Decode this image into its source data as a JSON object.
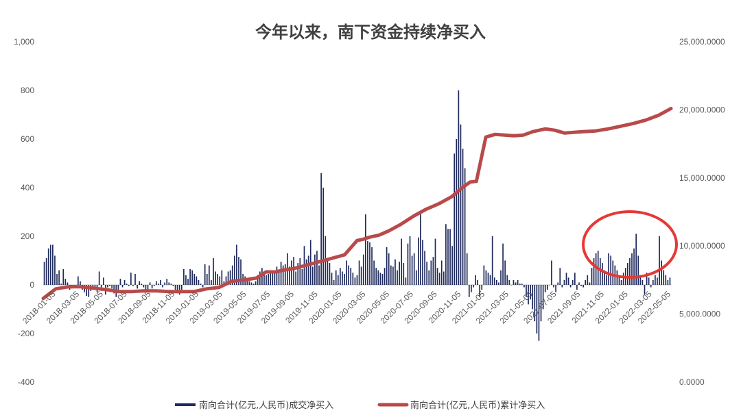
{
  "chart_data": {
    "type": "bar",
    "title": "今年以来，南下资金持续净买入",
    "left_axis": {
      "min": -400,
      "max": 1000,
      "ticks": [
        "1,000",
        "800",
        "600",
        "400",
        "200",
        "0",
        "-200",
        "-400"
      ]
    },
    "right_axis": {
      "min": 0,
      "max": 25000,
      "ticks": [
        "25,000.0000",
        "20,000.0000",
        "15,000.0000",
        "10,000.0000",
        "5,000.0000",
        "0.0000"
      ]
    },
    "x_tick_labels": [
      "2018-01-05",
      "2018-03-05",
      "2018-05-05",
      "2018-07-05",
      "2018-09-05",
      "2018-11-05",
      "2019-01-05",
      "2019-03-05",
      "2019-05-05",
      "2019-07-05",
      "2019-09-05",
      "2019-11-05",
      "2020-01-05",
      "2020-03-05",
      "2020-05-05",
      "2020-07-05",
      "2020-09-05",
      "2020-11-05",
      "2021-01-05",
      "2021-03-05",
      "2021-05-05",
      "2021-07-05",
      "2021-09-05",
      "2021-11-05",
      "2022-01-05",
      "2022-03-05",
      "2022-05-05"
    ],
    "series": [
      {
        "name": "南向合计(亿元,人民币)成交净买入",
        "kind": "bar",
        "axis": "left",
        "color": "#1f2a5c",
        "values": [
          95,
          110,
          150,
          165,
          165,
          120,
          45,
          60,
          5,
          65,
          25,
          10,
          -20,
          -15,
          -10,
          -5,
          35,
          15,
          -20,
          -30,
          -45,
          -50,
          -25,
          -10,
          -15,
          -30,
          55,
          -25,
          30,
          -40,
          -10,
          -5,
          -15,
          -35,
          -50,
          -20,
          25,
          -10,
          20,
          5,
          -5,
          50,
          -5,
          45,
          -15,
          15,
          5,
          -10,
          -20,
          -25,
          10,
          -15,
          -5,
          15,
          5,
          20,
          -10,
          10,
          25,
          10,
          5,
          -5,
          -20,
          -35,
          -40,
          -20,
          65,
          40,
          25,
          65,
          60,
          45,
          35,
          20,
          5,
          -10,
          85,
          45,
          80,
          20,
          110,
          55,
          45,
          35,
          60,
          15,
          35,
          55,
          60,
          80,
          120,
          165,
          115,
          105,
          45,
          35,
          25,
          15,
          10,
          5,
          15,
          40,
          55,
          70,
          50,
          40,
          45,
          60,
          50,
          55,
          75,
          60,
          95,
          80,
          85,
          130,
          75,
          100,
          115,
          55,
          90,
          110,
          65,
          160,
          105,
          120,
          185,
          75,
          125,
          140,
          80,
          460,
          400,
          200,
          110,
          90,
          50,
          20,
          60,
          40,
          70,
          55,
          45,
          100,
          80,
          70,
          50,
          30,
          40,
          100,
          75,
          125,
          290,
          180,
          175,
          155,
          100,
          70,
          60,
          50,
          45,
          70,
          155,
          130,
          80,
          75,
          105,
          60,
          95,
          190,
          90,
          30,
          170,
          200,
          120,
          130,
          60,
          195,
          290,
          185,
          140,
          95,
          60,
          100,
          115,
          190,
          70,
          50,
          100,
          55,
          250,
          230,
          230,
          160,
          540,
          600,
          800,
          660,
          560,
          480,
          130,
          -50,
          -30,
          -10,
          40,
          20,
          -50,
          -20,
          80,
          60,
          50,
          40,
          200,
          30,
          20,
          10,
          60,
          170,
          100,
          40,
          20,
          0,
          20,
          10,
          20,
          5,
          5,
          -10,
          -50,
          -80,
          -60,
          -100,
          -150,
          -200,
          -230,
          -150,
          -100,
          -30,
          -20,
          0,
          100,
          -10,
          -30,
          10,
          70,
          -10,
          20,
          50,
          30,
          -10,
          20,
          50,
          -20,
          10,
          -5,
          -10,
          20,
          40,
          10,
          70,
          110,
          130,
          140,
          110,
          90,
          60,
          40,
          130,
          120,
          100,
          80,
          60,
          40,
          20,
          50,
          70,
          90,
          110,
          130,
          150,
          210,
          120,
          40,
          20,
          -40,
          50,
          30,
          -10,
          20,
          40,
          30,
          200,
          100,
          60,
          40,
          20,
          30
        ]
      },
      {
        "name": "南向合计(亿元,人民币)累计净买入",
        "kind": "line",
        "axis": "right",
        "color": "#b94a4a",
        "x": [
          0,
          0.02,
          0.04,
          0.06,
          0.08,
          0.1,
          0.12,
          0.14,
          0.16,
          0.18,
          0.2,
          0.22,
          0.24,
          0.26,
          0.28,
          0.3,
          0.32,
          0.34,
          0.355,
          0.37,
          0.385,
          0.4,
          0.42,
          0.44,
          0.46,
          0.48,
          0.5,
          0.51,
          0.52,
          0.535,
          0.55,
          0.57,
          0.59,
          0.61,
          0.63,
          0.65,
          0.665,
          0.68,
          0.69,
          0.705,
          0.72,
          0.735,
          0.75,
          0.765,
          0.78,
          0.8,
          0.815,
          0.83,
          0.845,
          0.86,
          0.88,
          0.9,
          0.92,
          0.94,
          0.96,
          0.98,
          1.0
        ],
        "y": [
          6150,
          6850,
          7000,
          7000,
          6900,
          6800,
          6650,
          6650,
          6700,
          6700,
          6650,
          6650,
          6650,
          6850,
          6950,
          7400,
          7500,
          7650,
          8100,
          8100,
          8250,
          8350,
          8600,
          8850,
          9100,
          9350,
          10400,
          10500,
          10650,
          10800,
          11100,
          11600,
          12200,
          12700,
          13100,
          13600,
          14200,
          14700,
          14750,
          18000,
          18200,
          18150,
          18100,
          18150,
          18400,
          18600,
          18500,
          18300,
          18350,
          18400,
          18450,
          18600,
          18800,
          19000,
          19250,
          19600,
          20100
        ],
        "tick_positions": [
          0.02,
          0.058,
          0.096,
          0.134,
          0.172,
          0.21,
          0.248,
          0.286,
          0.324,
          0.362,
          0.4,
          0.438,
          0.476,
          0.514,
          0.552,
          0.59,
          0.628,
          0.666,
          0.704,
          0.742,
          0.78,
          0.818,
          0.856,
          0.894,
          0.932,
          0.97,
          1.0
        ]
      }
    ],
    "legend": "bottom",
    "annotation": {
      "type": "ellipse",
      "color": "#e53935",
      "target": "2022-01-05 to 2022-05-05 bars"
    }
  }
}
